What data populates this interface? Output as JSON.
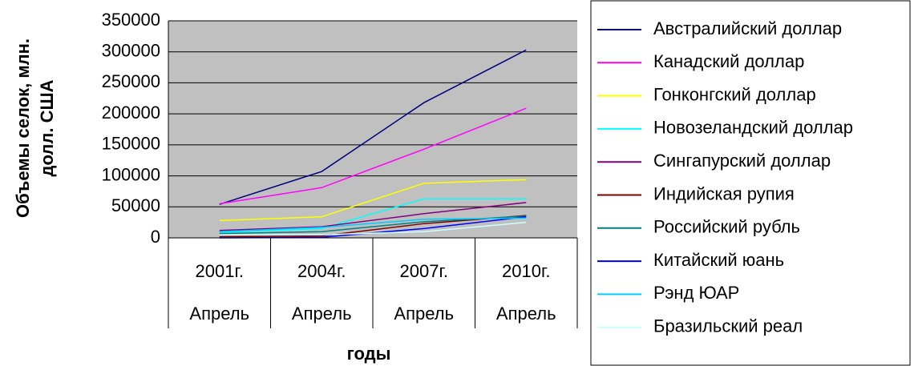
{
  "chart_data": {
    "type": "line",
    "y_label": [
      "Объемы селок, млн.",
      "долл. США"
    ],
    "x_label": "годы",
    "categories": [
      "2001г.",
      "2004г.",
      "2007г.",
      "2010г."
    ],
    "category_sublabels": [
      "Апрель",
      "Апрель",
      "Апрель",
      "Апрель"
    ],
    "ylim": [
      0,
      350000
    ],
    "yticks": [
      0,
      50000,
      100000,
      150000,
      200000,
      250000,
      300000,
      350000
    ],
    "grid": true,
    "legend": "right",
    "series": [
      {
        "name": "Австралийский доллар",
        "color": "#000080",
        "values": [
          54000,
          107000,
          218000,
          303000
        ]
      },
      {
        "name": "Канадский доллар",
        "color": "#ff00ff",
        "values": [
          55000,
          81000,
          143000,
          209000
        ]
      },
      {
        "name": "Гонконгский доллар",
        "color": "#ffff00",
        "values": [
          28000,
          34000,
          88000,
          94000
        ]
      },
      {
        "name": "Новозеландский доллар",
        "color": "#00ffff",
        "values": [
          9000,
          15000,
          63000,
          63000
        ]
      },
      {
        "name": "Сингапурский доллар",
        "color": "#800080",
        "values": [
          12000,
          18000,
          39000,
          57000
        ]
      },
      {
        "name": "Индийская рупия",
        "color": "#800000",
        "values": [
          2000,
          3000,
          23000,
          36000
        ]
      },
      {
        "name": "Российский рубль",
        "color": "#008080",
        "values": [
          7000,
          10000,
          26000,
          35000
        ]
      },
      {
        "name": "Китайский юань",
        "color": "#0000ff",
        "values": [
          0,
          1000,
          15000,
          34000
        ]
      },
      {
        "name": "Рэнд ЮАР",
        "color": "#00ccff",
        "values": [
          10000,
          17000,
          30000,
          32000
        ]
      },
      {
        "name": "Бразильский реал",
        "color": "#ccffff",
        "values": [
          5000,
          5000,
          10000,
          25000
        ]
      }
    ]
  }
}
